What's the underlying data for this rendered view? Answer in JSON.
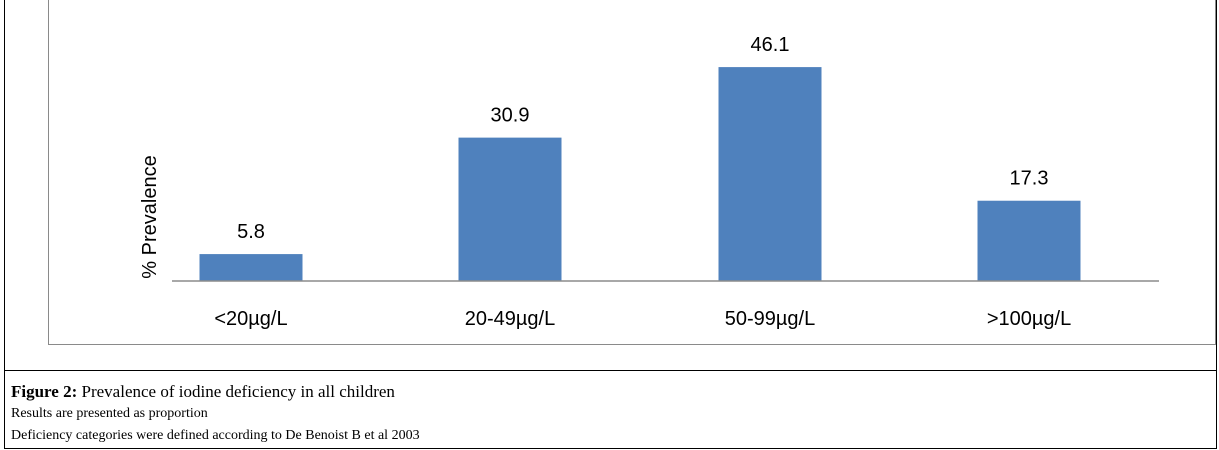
{
  "chart_data": {
    "type": "bar",
    "categories": [
      "<20µg/L",
      "20-49µg/L",
      "50-99µg/L",
      ">100µg/L"
    ],
    "values": [
      5.8,
      30.9,
      46.1,
      17.3
    ],
    "value_labels": [
      "5.8",
      "30.9",
      "46.1",
      "17.3"
    ],
    "ylabel": "% Prevalence",
    "xlabel": "",
    "ylim": [
      0,
      50
    ],
    "grid": false,
    "bar_color": "#4f81bd"
  },
  "caption": {
    "label": "Figure 2:",
    "title": " Prevalence of iodine deficiency in all children",
    "notes": [
      "Results are presented as proportion",
      "Deficiency categories were defined according to De Benoist B et al 2003"
    ]
  }
}
